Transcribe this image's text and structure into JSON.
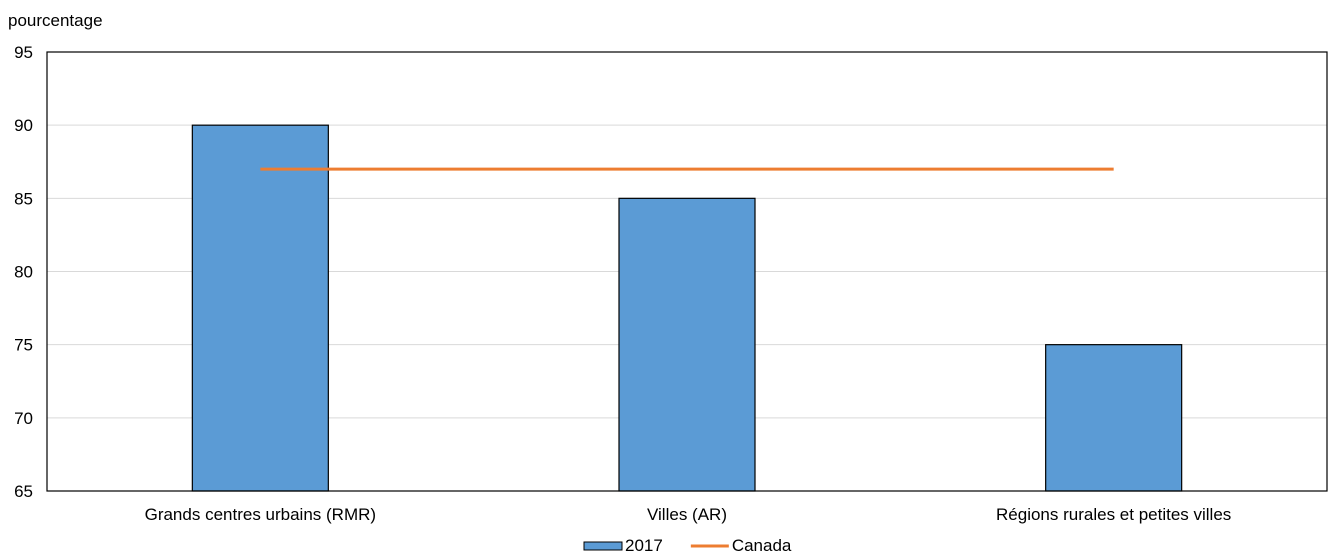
{
  "chart_data": {
    "type": "bar",
    "ylabel": "pourcentage",
    "xlabel": "",
    "ylim": [
      65,
      95
    ],
    "yticks": [
      65,
      70,
      75,
      80,
      85,
      90,
      95
    ],
    "categories": [
      "Grands centres urbains (RMR)",
      "Villes (AR)",
      "Régions rurales et petites villes"
    ],
    "series": [
      {
        "name": "2017",
        "type": "bar",
        "values": [
          90,
          85,
          75
        ],
        "color": "#5B9BD5"
      },
      {
        "name": "Canada",
        "type": "line",
        "values": [
          87,
          87,
          87
        ],
        "color": "#ED7D31"
      }
    ],
    "grid": "horizontal",
    "legend": "bottom-center"
  }
}
